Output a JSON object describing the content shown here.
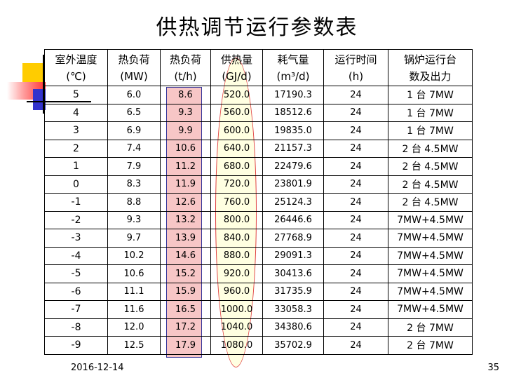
{
  "title": "供热调节运行参数表",
  "headers": [
    [
      "室外温度",
      "(℃)"
    ],
    [
      "热负荷",
      "(MW)"
    ],
    [
      "热负荷",
      "(t/h)"
    ],
    [
      "供热量",
      "(GJ/d)"
    ],
    [
      "耗气量",
      "(m³/d)"
    ],
    [
      "运行时间",
      "(h)"
    ],
    [
      "锅炉运行台",
      "数及出力"
    ]
  ],
  "rows": [
    [
      "5",
      "6.0",
      "8.6",
      "520.0",
      "17190.3",
      "24",
      "1 台 7MW"
    ],
    [
      "4",
      "6.5",
      "9.3",
      "560.0",
      "18512.6",
      "24",
      "1 台 7MW"
    ],
    [
      "3",
      "6.9",
      "9.9",
      "600.0",
      "19835.0",
      "24",
      "1 台 7MW"
    ],
    [
      "2",
      "7.4",
      "10.6",
      "640.0",
      "21157.3",
      "24",
      "2 台 4.5MW"
    ],
    [
      "1",
      "7.9",
      "11.2",
      "680.0",
      "22479.6",
      "24",
      "2 台 4.5MW"
    ],
    [
      "0",
      "8.3",
      "11.9",
      "720.0",
      "23801.9",
      "24",
      "2 台 4.5MW"
    ],
    [
      "-1",
      "8.8",
      "12.6",
      "760.0",
      "25124.3",
      "24",
      "2 台 4.5MW"
    ],
    [
      "-2",
      "9.3",
      "13.2",
      "800.0",
      "26446.6",
      "24",
      "7MW+4.5MW"
    ],
    [
      "-3",
      "9.7",
      "13.9",
      "840.0",
      "27768.9",
      "24",
      "7MW+4.5MW"
    ],
    [
      "-4",
      "10.2",
      "14.6",
      "880.0",
      "29091.3",
      "24",
      "7MW+4.5MW"
    ],
    [
      "-5",
      "10.6",
      "15.2",
      "920.0",
      "30413.6",
      "24",
      "7MW+4.5MW"
    ],
    [
      "-6",
      "11.1",
      "15.9",
      "960.0",
      "31735.9",
      "24",
      "7MW+4.5MW"
    ],
    [
      "-7",
      "11.6",
      "16.5",
      "1000.0",
      "33058.3",
      "24",
      "7MW+4.5MW"
    ],
    [
      "-8",
      "12.0",
      "17.2",
      "1040.0",
      "34380.6",
      "24",
      "2 台 7MW"
    ],
    [
      "-9",
      "12.5",
      "17.9",
      "1080.0",
      "35702.9",
      "24",
      "2 台 7MW"
    ]
  ],
  "footer": {
    "date": "2016-12-14",
    "page": "35"
  }
}
